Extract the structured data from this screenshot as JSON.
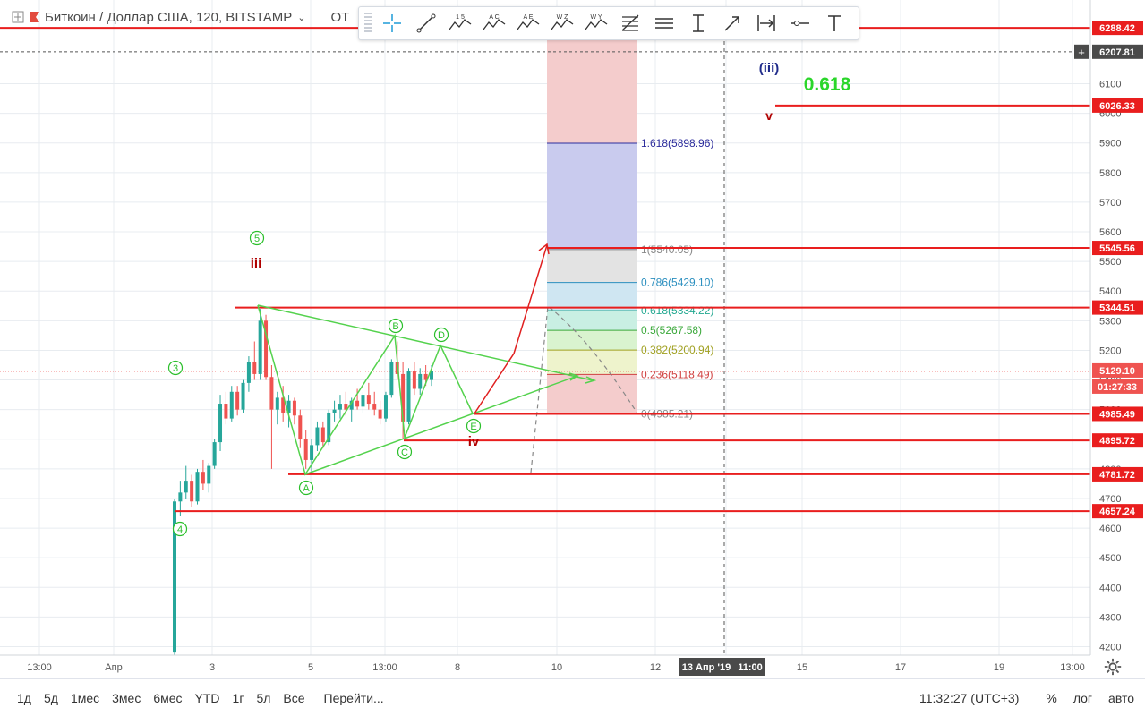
{
  "header": {
    "symbol_title": "Биткоин / Доллар США, 120, BITSTAMP",
    "extra": "ОТ"
  },
  "toolbar": {
    "tools": [
      "crosshair-icon",
      "trend-line-icon",
      "elliott-impulse-icon",
      "elliott-correction-icon",
      "elliott-triangle-icon",
      "elliott-double-combo-icon",
      "elliott-triple-combo-icon",
      "fib-retracement-icon",
      "parallel-lines-icon",
      "price-range-icon",
      "arrow-icon",
      "date-range-icon",
      "horizontal-ray-icon",
      "text-icon"
    ],
    "icon_labels": {
      "elliott-impulse-icon": "1 5",
      "elliott-correction-icon": "A C",
      "elliott-triangle-icon": "A E",
      "elliott-double-combo-icon": "W Z",
      "elliott-triple-combo-icon": "W Y"
    }
  },
  "colors": {
    "up": "#26a69a",
    "down": "#ef5350",
    "level": "#e91e1e",
    "wave": "#54d24d",
    "arrow": "#e02020",
    "grid": "#e8ecf0",
    "blue_label": "#1e2a8a"
  },
  "chart_data": {
    "type": "candlestick",
    "symbol": "BTCUSD",
    "ylim": [
      4170,
      6330
    ],
    "y_ticks": [
      4200,
      4300,
      4400,
      4500,
      4600,
      4700,
      4800,
      4900,
      5000,
      5100,
      5200,
      5300,
      5400,
      5500,
      5600,
      5700,
      5800,
      5900,
      6000,
      6100
    ],
    "x_ticks": [
      "13:00",
      "Апр",
      "3",
      "5",
      "13:00",
      "8",
      "10",
      "12",
      "13 Апр '19",
      "11:00",
      "15",
      "17",
      "19",
      "13:00"
    ],
    "price_labels": [
      "6288.42",
      "6207.81",
      "6026.33",
      "5545.56",
      "5344.51",
      "5129.10",
      "01:27:33",
      "4985.49",
      "4895.72",
      "4781.72",
      "4657.24"
    ],
    "horizontal_levels": [
      6288.42,
      6026.33,
      5545.56,
      5344.51,
      4985.49,
      4895.72,
      4781.72,
      4657.24
    ],
    "dashed_level": 6207.81,
    "current_price": 5129.1,
    "fib_levels": [
      {
        "ratio": "1.618",
        "price": "5898.96",
        "color": "#2c2c9c"
      },
      {
        "ratio": "1",
        "price": "5540.05",
        "color": "#888888"
      },
      {
        "ratio": "0.786",
        "price": "5429.10",
        "color": "#2b8fbf"
      },
      {
        "ratio": "0.618",
        "price": "5334.22",
        "color": "#22a890"
      },
      {
        "ratio": "0.5",
        "price": "5267.58",
        "color": "#3aa83a"
      },
      {
        "ratio": "0.382",
        "price": "5200.94",
        "color": "#a0a020"
      },
      {
        "ratio": "0.236",
        "price": "5118.49",
        "color": "#d04040"
      },
      {
        "ratio": "0",
        "price": "4985.21",
        "color": "#888888"
      }
    ],
    "wave_labels_circled": [
      "5",
      "3",
      "4",
      "A",
      "B",
      "C",
      "D",
      "E"
    ],
    "wave_labels_text": [
      {
        "text": "iii",
        "color": "#b00000"
      },
      {
        "text": "iv",
        "color": "#b00000"
      },
      {
        "text": "(iii)",
        "color": "#1e2a8a"
      },
      {
        "text": "v",
        "color": "#b00000"
      },
      {
        "text": "0.618",
        "color": "#2ad62a"
      }
    ],
    "candles": [
      [
        4180,
        4700,
        4160,
        4690
      ],
      [
        4690,
        4760,
        4640,
        4720
      ],
      [
        4720,
        4810,
        4700,
        4760
      ],
      [
        4760,
        4780,
        4670,
        4690
      ],
      [
        4690,
        4800,
        4680,
        4790
      ],
      [
        4790,
        4830,
        4730,
        4750
      ],
      [
        4750,
        4820,
        4720,
        4810
      ],
      [
        4810,
        4900,
        4800,
        4890
      ],
      [
        4890,
        5050,
        4860,
        5020
      ],
      [
        5020,
        5060,
        4950,
        4970
      ],
      [
        4970,
        5080,
        4960,
        5060
      ],
      [
        5060,
        5080,
        4980,
        5000
      ],
      [
        5000,
        5100,
        4990,
        5090
      ],
      [
        5090,
        5180,
        5060,
        5160
      ],
      [
        5160,
        5230,
        5100,
        5120
      ],
      [
        5120,
        5340,
        5100,
        5300
      ],
      [
        5300,
        5320,
        5100,
        5110
      ],
      [
        5110,
        5150,
        4800,
        5000
      ],
      [
        5000,
        5060,
        4950,
        5040
      ],
      [
        5040,
        5080,
        4960,
        4990
      ],
      [
        4990,
        5050,
        4940,
        5030
      ],
      [
        5030,
        5040,
        4950,
        4980
      ],
      [
        4980,
        5000,
        4870,
        4900
      ],
      [
        4900,
        4930,
        4800,
        4830
      ],
      [
        4830,
        4900,
        4790,
        4880
      ],
      [
        4880,
        4960,
        4860,
        4940
      ],
      [
        4940,
        4960,
        4870,
        4890
      ],
      [
        4890,
        5000,
        4880,
        4990
      ],
      [
        4990,
        5030,
        4960,
        5000
      ],
      [
        5000,
        5050,
        4970,
        5020
      ],
      [
        5020,
        5060,
        4980,
        5000
      ],
      [
        5000,
        5040,
        4960,
        5030
      ],
      [
        5030,
        5070,
        5000,
        5010
      ],
      [
        5010,
        5060,
        4990,
        5050
      ],
      [
        5050,
        5090,
        5000,
        5020
      ],
      [
        5020,
        5060,
        4980,
        5000
      ],
      [
        5000,
        5030,
        4950,
        4970
      ],
      [
        4970,
        5060,
        4960,
        5050
      ],
      [
        5050,
        5170,
        5040,
        5160
      ],
      [
        5160,
        5230,
        5100,
        5120
      ],
      [
        5120,
        5160,
        4900,
        4960
      ],
      [
        4960,
        5140,
        4950,
        5130
      ],
      [
        5130,
        5160,
        5050,
        5070
      ],
      [
        5070,
        5140,
        5050,
        5120
      ],
      [
        5120,
        5150,
        5080,
        5100
      ],
      [
        5100,
        5150,
        5080,
        5130
      ]
    ]
  },
  "bottom_bar": {
    "timeframes": [
      "1д",
      "5д",
      "1мес",
      "3мес",
      "6мес",
      "YTD",
      "1г",
      "5л",
      "Все"
    ],
    "goto": "Перейти...",
    "clock": "11:32:27 (UTC+3)",
    "percent": "%",
    "log": "лог",
    "auto": "авто"
  }
}
